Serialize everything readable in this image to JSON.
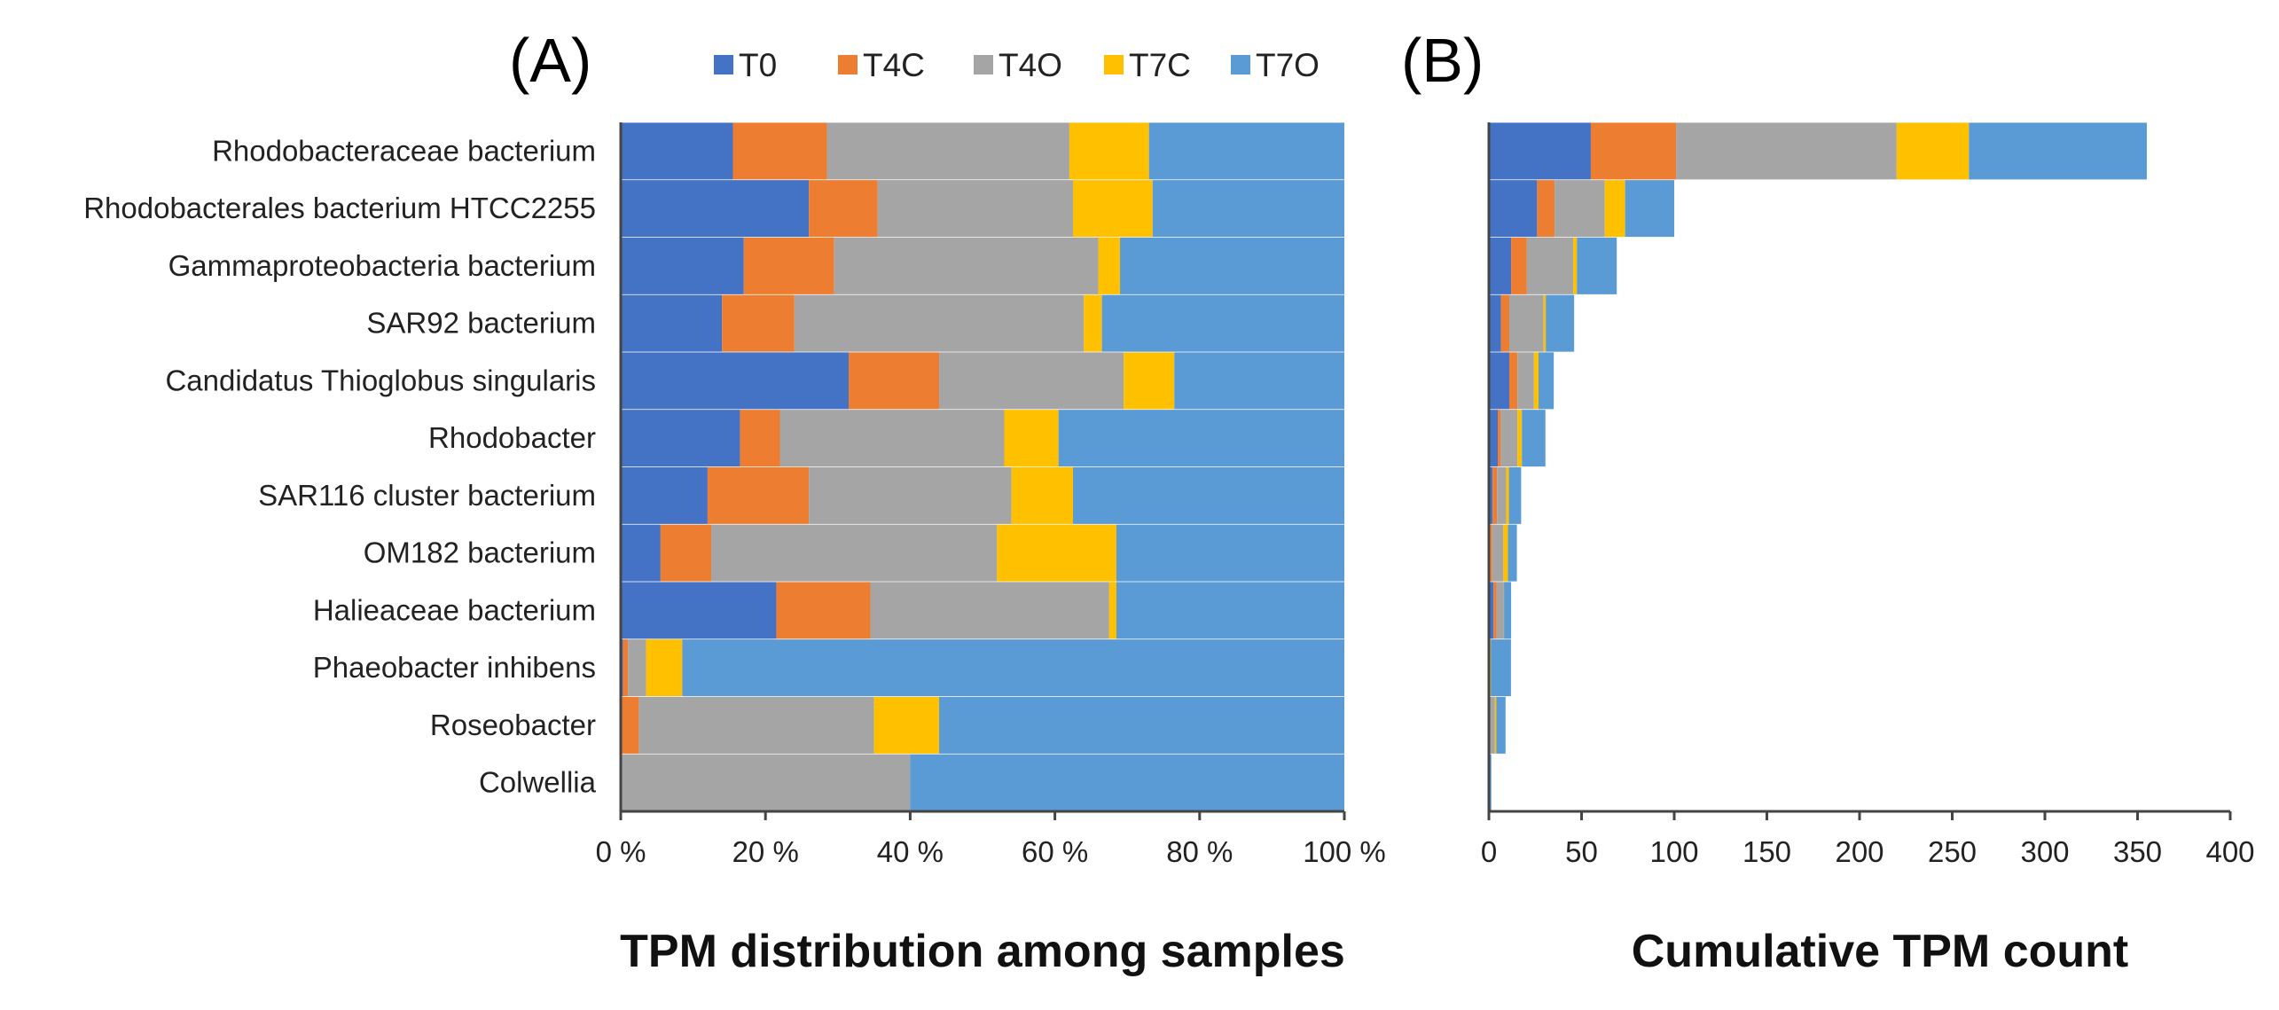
{
  "chart_data": [
    {
      "panel": "(A)",
      "type": "bar",
      "orientation": "horizontal",
      "stacked": "percent",
      "xlabel": "TPM distribution among samples",
      "ylabel": "",
      "xlim": [
        0,
        100
      ],
      "x_ticks": [
        "0 %",
        "20 %",
        "40 %",
        "60 %",
        "80 %",
        "100 %"
      ],
      "categories": [
        "Rhodobacteraceae bacterium",
        "Rhodobacterales bacterium HTCC2255",
        "Gammaproteobacteria bacterium",
        "SAR92 bacterium",
        "Candidatus Thioglobus singularis",
        "Rhodobacter",
        "SAR116 cluster bacterium",
        "OM182 bacterium",
        "Halieaceae bacterium",
        "Phaeobacter inhibens",
        "Roseobacter",
        "Colwellia"
      ],
      "series": [
        {
          "name": "T0",
          "color": "#4472C4",
          "values": [
            15.5,
            26,
            17,
            14,
            31.5,
            16.5,
            12,
            5.5,
            21.5,
            0.3,
            0,
            0
          ]
        },
        {
          "name": "T4C",
          "color": "#ED7D31",
          "values": [
            13,
            9.5,
            12.5,
            10,
            12.5,
            5.5,
            14,
            7,
            13,
            0.7,
            2.5,
            0
          ]
        },
        {
          "name": "T4O",
          "color": "#A5A5A5",
          "values": [
            33.5,
            27,
            36.5,
            40,
            25.5,
            31,
            28,
            39.5,
            33,
            2.5,
            32.5,
            40
          ]
        },
        {
          "name": "T7C",
          "color": "#FFC000",
          "values": [
            11,
            11,
            3,
            2.5,
            7,
            7.5,
            8.5,
            16.5,
            1,
            5,
            9,
            0
          ]
        },
        {
          "name": "T7O",
          "color": "#5B9BD5",
          "values": [
            27,
            26.5,
            31,
            33.5,
            23.5,
            39.5,
            37.5,
            31.5,
            31.5,
            91.5,
            56,
            60
          ]
        }
      ]
    },
    {
      "panel": "(B)",
      "type": "bar",
      "orientation": "horizontal",
      "stacked": "absolute",
      "xlabel": "Cumulative TPM count",
      "ylabel": "",
      "xlim": [
        0,
        400
      ],
      "x_ticks": [
        "0",
        "50",
        "100",
        "150",
        "200",
        "250",
        "300",
        "350",
        "400"
      ],
      "categories": [
        "Rhodobacteraceae bacterium",
        "Rhodobacterales bacterium HTCC2255",
        "Gammaproteobacteria bacterium",
        "SAR92 bacterium",
        "Candidatus Thioglobus singularis",
        "Rhodobacter",
        "SAR116 cluster bacterium",
        "OM182 bacterium",
        "Halieaceae bacterium",
        "Phaeobacter inhibens",
        "Roseobacter",
        "Colwellia"
      ],
      "series": [
        {
          "name": "T0",
          "color": "#4472C4",
          "values": [
            55,
            26,
            12,
            6.5,
            11,
            4.8,
            2,
            0.8,
            2.5,
            0.04,
            0,
            0
          ]
        },
        {
          "name": "T4C",
          "color": "#ED7D31",
          "values": [
            46,
            9.5,
            8.5,
            4.5,
            4.4,
            1.6,
            2.4,
            1,
            1.6,
            0.08,
            0.2,
            0
          ]
        },
        {
          "name": "T4O",
          "color": "#A5A5A5",
          "values": [
            119,
            27,
            25,
            18.5,
            8.9,
            9,
            4.9,
            6,
            4,
            0.3,
            3,
            0.5
          ]
        },
        {
          "name": "T7C",
          "color": "#FFC000",
          "values": [
            39,
            11,
            2,
            1.2,
            2.5,
            2.4,
            1.5,
            2.5,
            0.1,
            0.6,
            0.8,
            0
          ]
        },
        {
          "name": "T7O",
          "color": "#5B9BD5",
          "values": [
            96,
            26.5,
            21.5,
            15.3,
            8.2,
            12.7,
            6.6,
            4.8,
            3.8,
            10.9,
            5,
            0.8
          ]
        }
      ]
    }
  ]
}
